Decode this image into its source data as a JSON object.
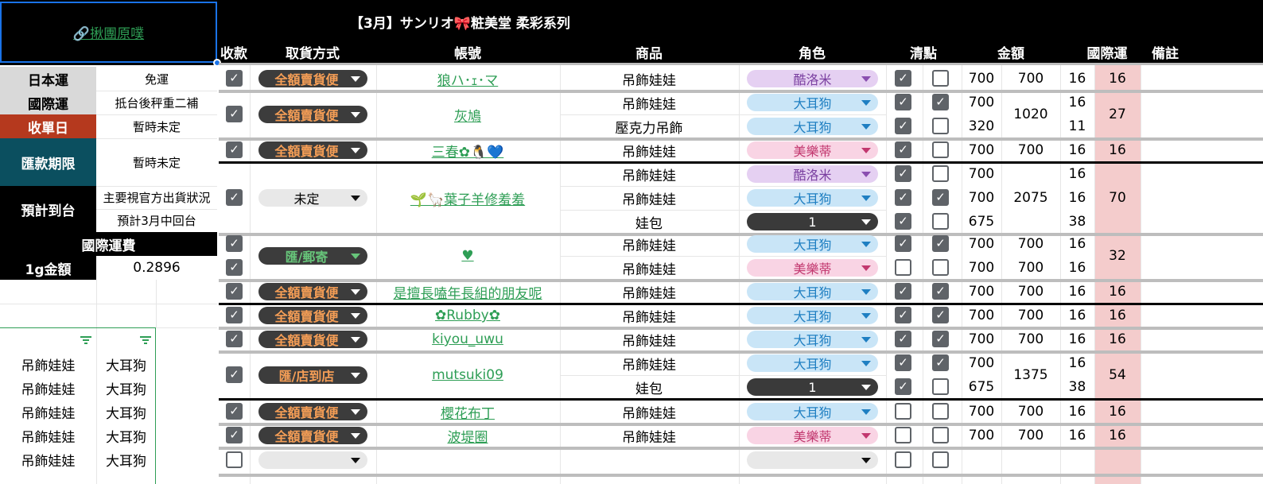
{
  "title": "【3月】サンリオ🎀粧美堂 柔彩系列",
  "group_link": "🔗揪團原噗",
  "headers": {
    "paid": "收款",
    "pickup": "取貨方式",
    "account": "帳號",
    "product": "商品",
    "role": "角色",
    "check": "清點",
    "amount": "金額",
    "intl": "國際運",
    "note": "備註"
  },
  "info": {
    "jp_ship_label": "日本運",
    "jp_ship_val": "免運",
    "intl_label": "國際運",
    "intl_val": "抵台後秤重二補",
    "close_label": "收單日",
    "close_val": "暫時未定",
    "pay_label": "匯款期限",
    "pay_val": "暫時未定",
    "eta_label": "預計到台",
    "eta_val1": "主要視官方出貨狀況",
    "eta_val2": "預計3月中回台",
    "fee_title": "國際運費",
    "gram_label": "1g金額",
    "gram_val": "0.2896"
  },
  "filter_rows": [
    {
      "p": "吊飾娃娃",
      "r": "大耳狗"
    },
    {
      "p": "吊飾娃娃",
      "r": "大耳狗"
    },
    {
      "p": "吊飾娃娃",
      "r": "大耳狗"
    },
    {
      "p": "吊飾娃娃",
      "r": "大耳狗"
    },
    {
      "p": "吊飾娃娃",
      "r": "大耳狗"
    }
  ],
  "orders": [
    {
      "pickup": "全額賣貨便",
      "account": "狼ハ･ｪ･マ",
      "total": "700",
      "intl": "16",
      "items": [
        {
          "p": "吊飾娃娃",
          "r": "酷洛米",
          "a": "700",
          "w": "16"
        }
      ]
    },
    {
      "pickup": "全額賣貨便",
      "account": "灰鳩",
      "total": "1020",
      "intl": "27",
      "items": [
        {
          "p": "吊飾娃娃",
          "r": "大耳狗",
          "a": "700",
          "w": "16"
        },
        {
          "p": "壓克力吊飾",
          "r": "大耳狗",
          "a": "320",
          "w": "11"
        }
      ]
    },
    {
      "pickup": "全額賣貨便",
      "account": "三春✿🐧💙",
      "total": "700",
      "intl": "16",
      "items": [
        {
          "p": "吊飾娃娃",
          "r": "美樂蒂",
          "a": "700",
          "w": "16"
        }
      ]
    },
    {
      "pickup": "未定",
      "account": "🌱🦙葉子羊修羞羞",
      "total": "2075",
      "intl": "70",
      "items": [
        {
          "p": "吊飾娃娃",
          "r": "酷洛米",
          "a": "700",
          "w": "16"
        },
        {
          "p": "吊飾娃娃",
          "r": "大耳狗",
          "a": "700",
          "w": "16"
        },
        {
          "p": "娃包",
          "r": "1",
          "a": "675",
          "w": "38"
        }
      ]
    },
    {
      "pickup": "匯/郵寄",
      "account": "♥",
      "total1": "700",
      "total2": "700",
      "intl": "32",
      "items": [
        {
          "p": "吊飾娃娃",
          "r": "大耳狗",
          "a": "700",
          "w": "16"
        },
        {
          "p": "吊飾娃娃",
          "r": "美樂蒂",
          "a": "700",
          "w": "16"
        }
      ]
    },
    {
      "pickup": "全額賣貨便",
      "account": "是擅長嗑年長組的朋友呢",
      "total": "700",
      "intl": "16",
      "items": [
        {
          "p": "吊飾娃娃",
          "r": "大耳狗",
          "a": "700",
          "w": "16"
        }
      ]
    },
    {
      "pickup": "全額賣貨便",
      "account": "✿Rubby✿",
      "total": "700",
      "intl": "16",
      "items": [
        {
          "p": "吊飾娃娃",
          "r": "大耳狗",
          "a": "700",
          "w": "16"
        }
      ]
    },
    {
      "pickup": "全額賣貨便",
      "account": "kiyou_uwu",
      "total": "700",
      "intl": "16",
      "items": [
        {
          "p": "吊飾娃娃",
          "r": "大耳狗",
          "a": "700",
          "w": "16"
        }
      ]
    },
    {
      "pickup": "匯/店到店",
      "account": "mutsuki09",
      "total": "1375",
      "intl": "54",
      "items": [
        {
          "p": "吊飾娃娃",
          "r": "大耳狗",
          "a": "700",
          "w": "16"
        },
        {
          "p": "娃包",
          "r": "1",
          "a": "675",
          "w": "38"
        }
      ]
    },
    {
      "pickup": "全額賣貨便",
      "account": "櫻花布丁",
      "total": "700",
      "intl": "16",
      "items": [
        {
          "p": "吊飾娃娃",
          "r": "大耳狗",
          "a": "700",
          "w": "16"
        }
      ]
    },
    {
      "pickup": "全額賣貨便",
      "account": "波堤圈",
      "total": "700",
      "intl": "16",
      "items": [
        {
          "p": "吊飾娃娃",
          "r": "美樂蒂",
          "a": "700",
          "w": "16"
        }
      ]
    }
  ],
  "colors": {
    "accent_red": "#b5391e",
    "accent_teal": "#0b4f5f",
    "link_green": "#2e9e55",
    "intl_pink": "#f4cccc"
  }
}
